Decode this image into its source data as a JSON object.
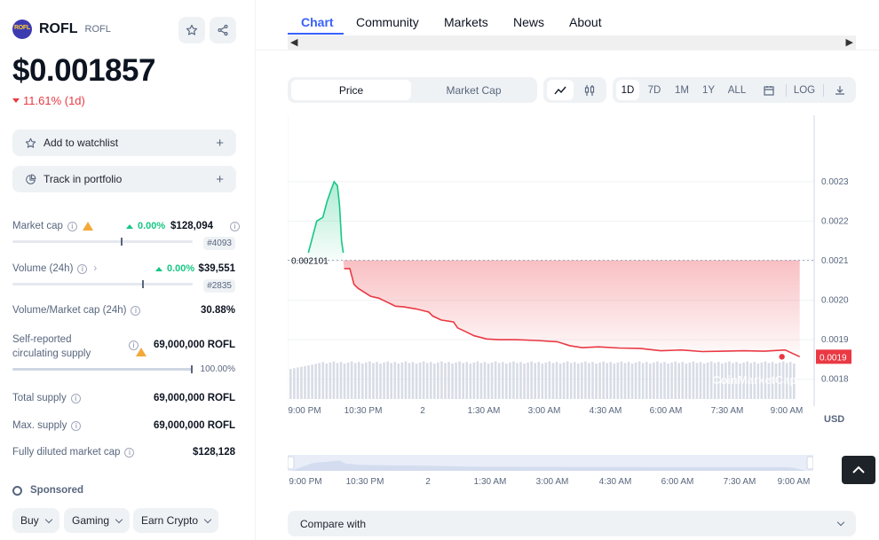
{
  "coin": {
    "logo_text": "ROFL",
    "name": "ROFL",
    "symbol": "ROFL",
    "price": "$0.001857",
    "change": "11.61% (1d)",
    "change_direction": "down"
  },
  "actions": {
    "watchlist": "Add to watchlist",
    "portfolio": "Track in portfolio"
  },
  "stats": {
    "market_cap": {
      "label": "Market cap",
      "change": "0.00%",
      "value": "$128,094",
      "rank": "#4093",
      "bar_fraction": 0.6
    },
    "volume": {
      "label": "Volume (24h)",
      "change": "0.00%",
      "value": "$39,551",
      "rank": "#2835",
      "bar_fraction": 0.72
    },
    "vol_mcap": {
      "label": "Volume/Market cap (24h)",
      "value": "30.88%"
    },
    "circulating": {
      "label_line1": "Self-reported",
      "label_line2": "circulating supply",
      "value": "69,000,000 ROFL",
      "percent": "100.00%",
      "bar_fraction": 1.0
    },
    "total_supply": {
      "label": "Total supply",
      "value": "69,000,000 ROFL"
    },
    "max_supply": {
      "label": "Max. supply",
      "value": "69,000,000 ROFL"
    },
    "fdv": {
      "label": "Fully diluted market cap",
      "value": "$128,128"
    }
  },
  "sponsored": {
    "label": "Sponsored",
    "tags": [
      "Buy",
      "Gaming",
      "Earn Crypto"
    ]
  },
  "tabs": [
    "Chart",
    "Community",
    "Markets",
    "News",
    "About"
  ],
  "chart_controls": {
    "price_tab": "Price",
    "mcap_tab": "Market Cap",
    "ranges": [
      "1D",
      "7D",
      "1M",
      "1Y",
      "ALL"
    ],
    "log": "LOG",
    "currency": "USD"
  },
  "compare": {
    "label": "Compare with"
  },
  "chart_data": {
    "type": "line",
    "title": "",
    "xlabel": "",
    "ylabel": "",
    "y_ticks": [
      "0.0023",
      "0.0022",
      "0.0021",
      "0.0020",
      "0.0019",
      "0.0018"
    ],
    "x_ticks": [
      "9:00 PM",
      "10:30 PM",
      "2",
      "1:30 AM",
      "3:00 AM",
      "4:30 AM",
      "6:00 AM",
      "7:30 AM",
      "9:00 AM"
    ],
    "nav_ticks": [
      "9:00 PM",
      "10:30 PM",
      "2",
      "1:30 AM",
      "3:00 AM",
      "4:30 AM",
      "6:00 AM",
      "7:30 AM",
      "9:00 AM"
    ],
    "reference_value": 0.002101,
    "reference_label": "0.002101",
    "last_value_label": "0.0019",
    "ylim": [
      0.00175,
      0.00245
    ],
    "x_hours_range": [
      -0.5,
      12.2
    ],
    "watermark": "CoinMarketCap",
    "series": [
      {
        "x": [
          0,
          0.2,
          0.35,
          0.45,
          0.55,
          0.62,
          0.7,
          0.75,
          0.8,
          0.84,
          0.86,
          1.0,
          1.1,
          1.2,
          1.35,
          1.5,
          1.7,
          1.9,
          2.0,
          2.1,
          2.3,
          2.6,
          2.9,
          3.0,
          3.2,
          3.5,
          3.6,
          3.8,
          4.0,
          4.3,
          4.6,
          5.0,
          5.5,
          6.0,
          6.3,
          6.6,
          7.0,
          7.5,
          8.0,
          8.5,
          9.0,
          9.5,
          10.0,
          10.5,
          11.0,
          11.5,
          11.85
        ],
        "values": [
          0.00212,
          0.0022,
          0.00221,
          0.00225,
          0.00228,
          0.0023,
          0.00229,
          0.00224,
          0.00215,
          0.00212,
          0.00208,
          0.00208,
          0.00204,
          0.00203,
          0.00202,
          0.00201,
          0.002005,
          0.001995,
          0.00199,
          0.001985,
          0.001983,
          0.001978,
          0.00197,
          0.00196,
          0.00195,
          0.001945,
          0.00193,
          0.00192,
          0.00191,
          0.001902,
          0.0019,
          0.0019,
          0.001898,
          0.001895,
          0.001885,
          0.00188,
          0.001882,
          0.001879,
          0.001878,
          0.001872,
          0.001874,
          0.00187,
          0.001871,
          0.001872,
          0.001871,
          0.001874,
          0.001857
        ]
      }
    ]
  }
}
